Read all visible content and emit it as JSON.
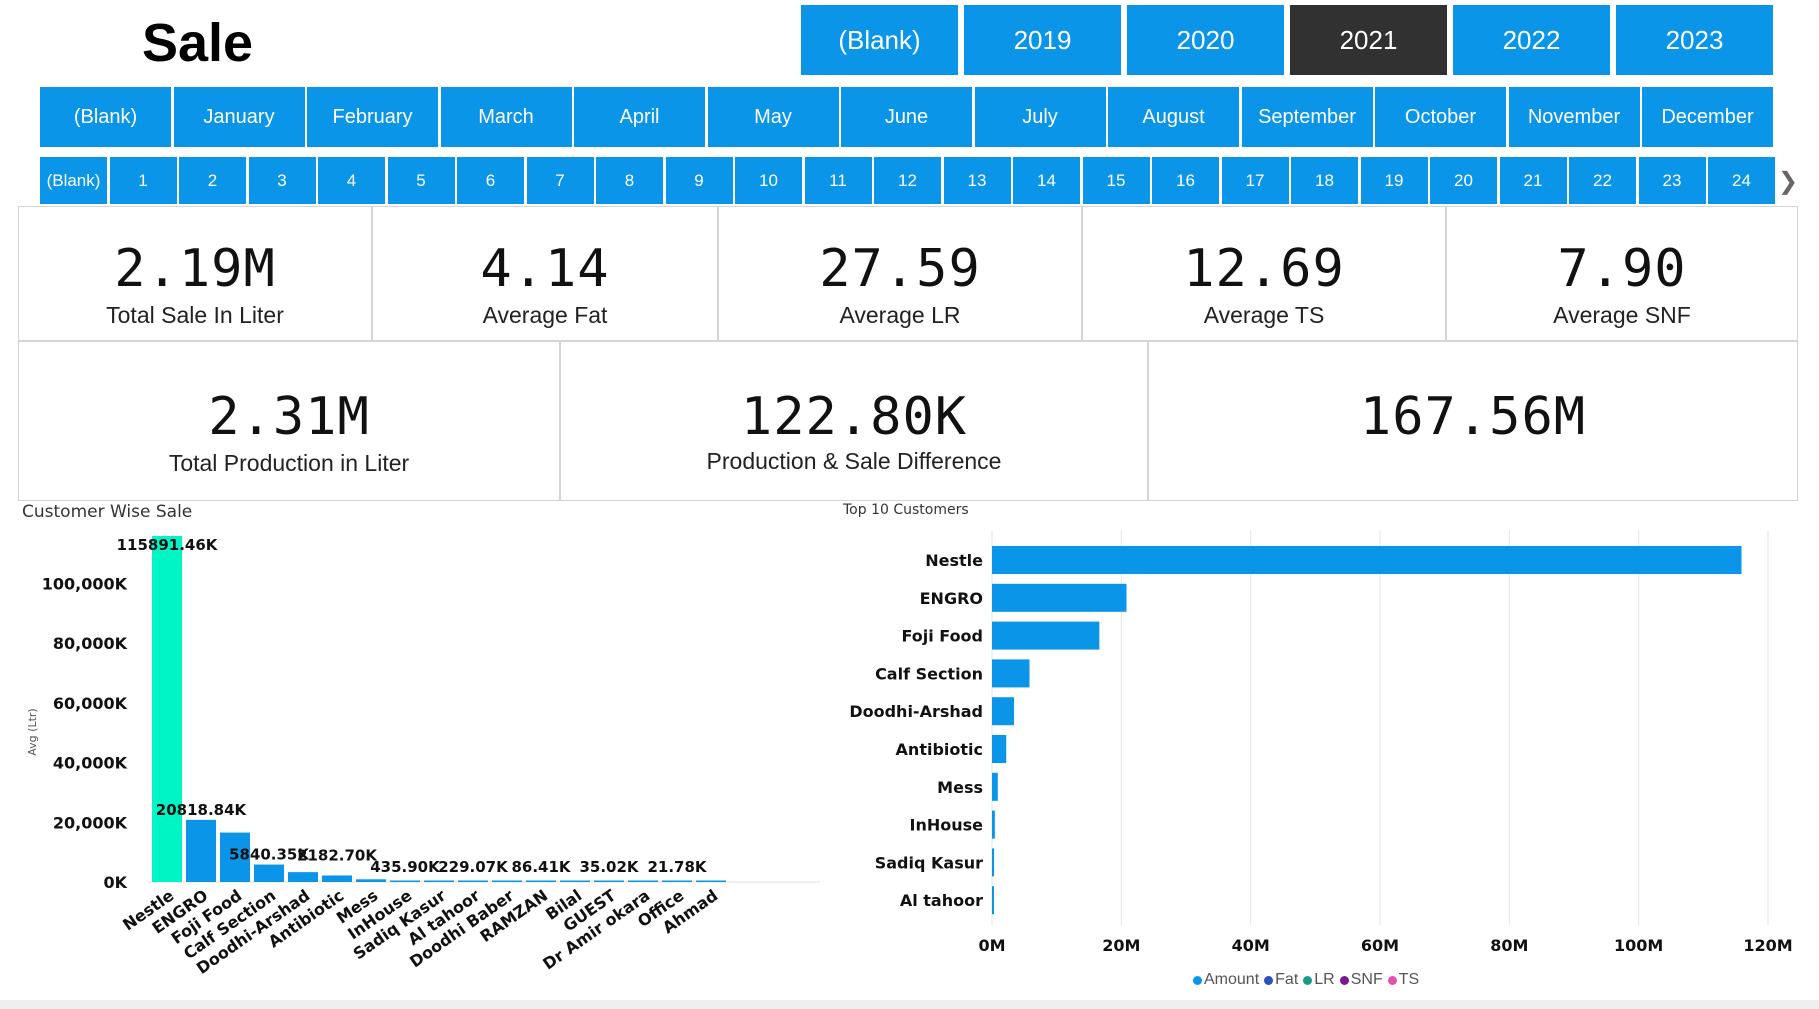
{
  "page": {
    "title": "Sale"
  },
  "slicers": {
    "years": [
      "(Blank)",
      "2019",
      "2020",
      "2021",
      "2022",
      "2023"
    ],
    "selected_year": "2021",
    "months": [
      "(Blank)",
      "January",
      "February",
      "March",
      "April",
      "May",
      "June",
      "July",
      "August",
      "September",
      "October",
      "November",
      "December"
    ],
    "days": [
      "(Blank)",
      "1",
      "2",
      "3",
      "4",
      "5",
      "6",
      "7",
      "8",
      "9",
      "10",
      "11",
      "12",
      "13",
      "14",
      "15",
      "16",
      "17",
      "18",
      "19",
      "20",
      "21",
      "22",
      "23",
      "24"
    ],
    "day_scroll_icon": "chevron-right-icon"
  },
  "kpis": {
    "total_sale": {
      "value": "2.19M",
      "label": "Total Sale In Liter"
    },
    "avg_fat": {
      "value": "4.14",
      "label": "Average Fat"
    },
    "avg_lr": {
      "value": "27.59",
      "label": "Average LR"
    },
    "avg_ts": {
      "value": "12.69",
      "label": "Average TS"
    },
    "avg_snf": {
      "value": "7.90",
      "label": "Average SNF"
    },
    "total_production": {
      "value": "2.31M",
      "label": "Total Production in Liter"
    },
    "difference": {
      "value": "122.80K",
      "label": "Production & Sale Difference"
    },
    "amount": {
      "value": "167.56M"
    }
  },
  "chart_data": [
    {
      "type": "bar",
      "title": "Customer Wise Sale",
      "ylabel": "Avg (Ltr)",
      "xlabel": "",
      "ylim": [
        0,
        115891.46
      ],
      "yticks": [
        0,
        20000,
        40000,
        60000,
        80000,
        100000
      ],
      "ytick_labels": [
        "0K",
        "20,000K",
        "40,000K",
        "60,000K",
        "80,000K",
        "100,000K"
      ],
      "categories": [
        "Nestle",
        "ENGRO",
        "Foji Food",
        "Calf Section",
        "Doodhi-Arshad",
        "Antibiotic",
        "Mess",
        "InHouse",
        "Sadiq Kasur",
        "Al tahoor",
        "Doodhi Baber",
        "RAMZAN",
        "Bilal",
        "GUEST",
        "Dr Amir okara",
        "Office",
        "Ahmad"
      ],
      "values": [
        115891.46,
        20818.84,
        16550,
        5840.35,
        3300,
        2182.7,
        900,
        435.9,
        320,
        229.07,
        150,
        86.41,
        60,
        35.02,
        28,
        21.78,
        10
      ],
      "data_labels": [
        "115891.46K",
        "20818.84K",
        "",
        "5840.35K",
        "",
        "2182.70K",
        "",
        "435.90K",
        "",
        "229.07K",
        "",
        "86.41K",
        "",
        "35.02K",
        "",
        "21.78K",
        ""
      ],
      "highlight_color": "#00f5c4",
      "bar_color": "#0a95e8",
      "grid": false
    },
    {
      "type": "bar",
      "orientation": "horizontal",
      "title": "Top 10 Customers",
      "categories": [
        "Nestle",
        "ENGRO",
        "Foji Food",
        "Calf Section",
        "Doodhi-Arshad",
        "Antibiotic",
        "Mess",
        "InHouse",
        "Sadiq Kasur",
        "Al tahoor"
      ],
      "series": [
        {
          "name": "Amount",
          "values": [
            115.9,
            20.8,
            16.6,
            5.8,
            3.4,
            2.2,
            0.9,
            0.44,
            0.32,
            0.23
          ]
        }
      ],
      "xlim": [
        0,
        120
      ],
      "xticks": [
        0,
        20,
        40,
        60,
        80,
        100,
        120
      ],
      "xtick_labels": [
        "0M",
        "20M",
        "40M",
        "60M",
        "80M",
        "100M",
        "120M"
      ],
      "bar_color": "#0a95e8",
      "grid": true,
      "legend": [
        {
          "label": "Amount",
          "color": "#0a95e8"
        },
        {
          "label": "Fat",
          "color": "#2a4fbe"
        },
        {
          "label": "LR",
          "color": "#1a9a8a"
        },
        {
          "label": "SNF",
          "color": "#7a1a8a"
        },
        {
          "label": "TS",
          "color": "#e64fb0"
        }
      ],
      "legend_position": "bottom"
    }
  ]
}
